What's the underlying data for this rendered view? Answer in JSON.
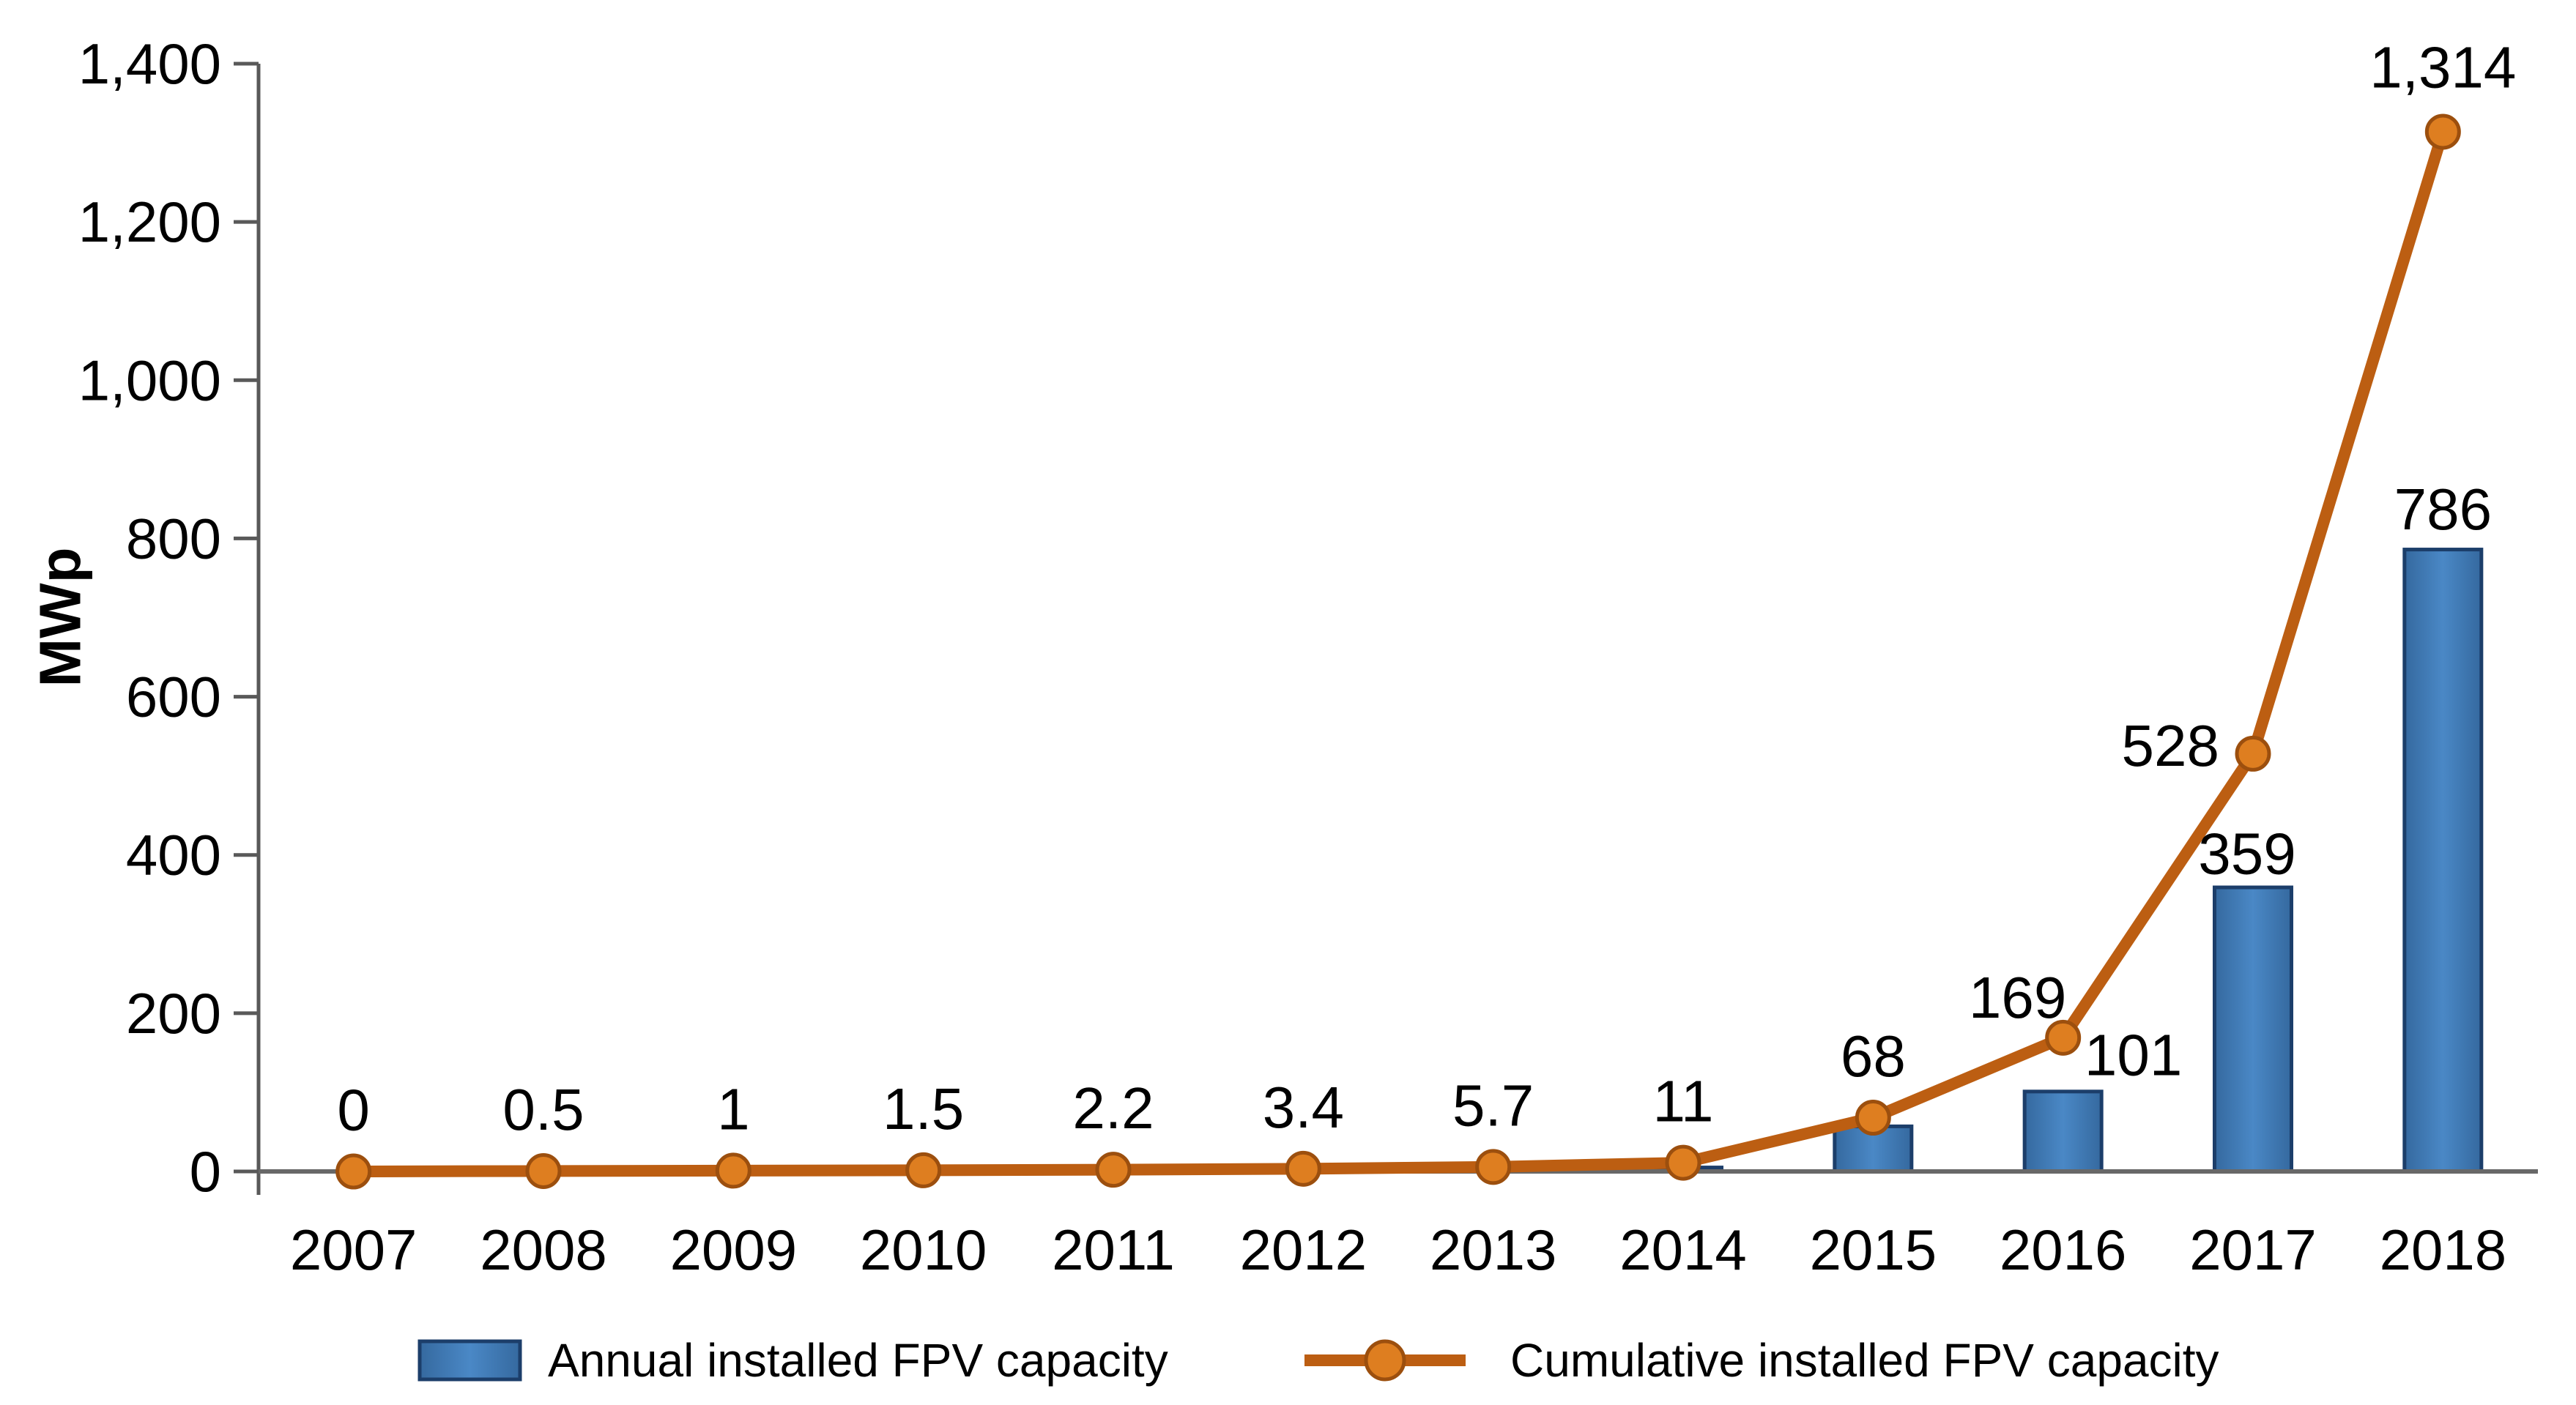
{
  "chart_data": {
    "type": "combo-bar-line",
    "title": "",
    "xlabel": "",
    "ylabel": "MWp",
    "categories": [
      "2007",
      "2008",
      "2009",
      "2010",
      "2011",
      "2012",
      "2013",
      "2014",
      "2015",
      "2016",
      "2017",
      "2018"
    ],
    "ylim": [
      0,
      1400
    ],
    "yticks": [
      "0",
      "200",
      "400",
      "600",
      "800",
      "1,000",
      "1,200",
      "1,400"
    ],
    "grid": "off",
    "legend_position": "bottom",
    "series": [
      {
        "name": "Annual installed FPV capacity",
        "type": "bar",
        "values": [
          0,
          0,
          0,
          0,
          0,
          0,
          0,
          5,
          57,
          101,
          359,
          786
        ],
        "data_labels": [
          "",
          "",
          "",
          "",
          "",
          "",
          "",
          "",
          "",
          "101",
          "359",
          "786"
        ]
      },
      {
        "name": "Cumulative installed FPV capacity",
        "type": "line",
        "values": [
          0,
          0.5,
          1,
          1.5,
          2.2,
          3.4,
          5.7,
          11,
          68,
          169,
          528,
          1314
        ],
        "data_labels": [
          "0",
          "0.5",
          "1",
          "1.5",
          "2.2",
          "3.4",
          "5.7",
          "11",
          "68",
          "169",
          "528",
          "1,314"
        ]
      }
    ],
    "colors": {
      "bar_fill": "#3e7cba",
      "bar_fill_light": "#4a88c6",
      "bar_border": "#1c3e6a",
      "line": "#bc5e12",
      "marker_fill": "#de7e20",
      "marker_border": "#9c4f0e",
      "axis": "#595959",
      "baseline": "#686868",
      "text": "#000000"
    }
  },
  "legend": {
    "items": [
      {
        "label": "Annual installed FPV capacity",
        "swatch": "bar-swatch"
      },
      {
        "label": "Cumulative installed FPV capacity",
        "swatch": "line-marker-swatch"
      }
    ]
  }
}
